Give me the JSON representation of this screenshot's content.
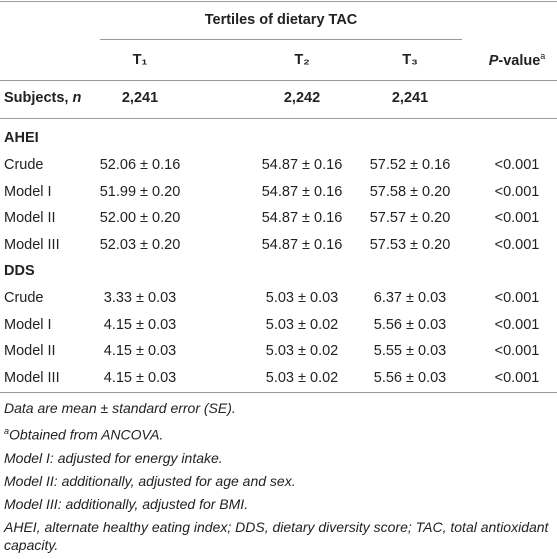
{
  "header": {
    "group": "Tertiles of dietary TAC",
    "columns": [
      "T₁",
      "T₂",
      "T₃"
    ],
    "p_value": {
      "italic": "P",
      "rest": "-value",
      "note": "a"
    }
  },
  "subjects": {
    "label": "Subjects, ",
    "n": "n",
    "values": [
      "2,241",
      "2,242",
      "2,241"
    ]
  },
  "sections": [
    {
      "title": "AHEI",
      "rows": [
        [
          "Crude",
          "52.06 ± 0.16",
          "54.87 ± 0.16",
          "57.52 ± 0.16",
          "<0.001"
        ],
        [
          "Model I",
          "51.99 ± 0.20",
          "54.87 ± 0.16",
          "57.58 ± 0.20",
          "<0.001"
        ],
        [
          "Model II",
          "52.00 ± 0.20",
          "54.87 ± 0.16",
          "57.57 ± 0.20",
          "<0.001"
        ],
        [
          "Model III",
          "52.03 ± 0.20",
          "54.87 ± 0.16",
          "57.53 ± 0.20",
          "<0.001"
        ]
      ]
    },
    {
      "title": "DDS",
      "rows": [
        [
          "Crude",
          "3.33 ± 0.03",
          "5.03 ± 0.03",
          "6.37 ± 0.03",
          "<0.001"
        ],
        [
          "Model I",
          "4.15 ± 0.03",
          "5.03 ± 0.02",
          "5.56 ± 0.03",
          "<0.001"
        ],
        [
          "Model II",
          "4.15 ± 0.03",
          "5.03 ± 0.02",
          "5.55 ± 0.03",
          "<0.001"
        ],
        [
          "Model III",
          "4.15 ± 0.03",
          "5.03 ± 0.02",
          "5.56 ± 0.03",
          "<0.001"
        ]
      ]
    }
  ],
  "footnotes": [
    {
      "text": "Data are mean ± standard error (SE)."
    },
    {
      "mark": "a",
      "text": "Obtained from ANCOVA."
    },
    {
      "text": "Model I: adjusted for energy intake."
    },
    {
      "text": "Model II: additionally, adjusted for age and sex."
    },
    {
      "text": "Model III: additionally, adjusted for BMI."
    },
    {
      "text": "AHEI, alternate healthy eating index; DDS, dietary diversity score; TAC, total antioxidant capacity."
    }
  ]
}
